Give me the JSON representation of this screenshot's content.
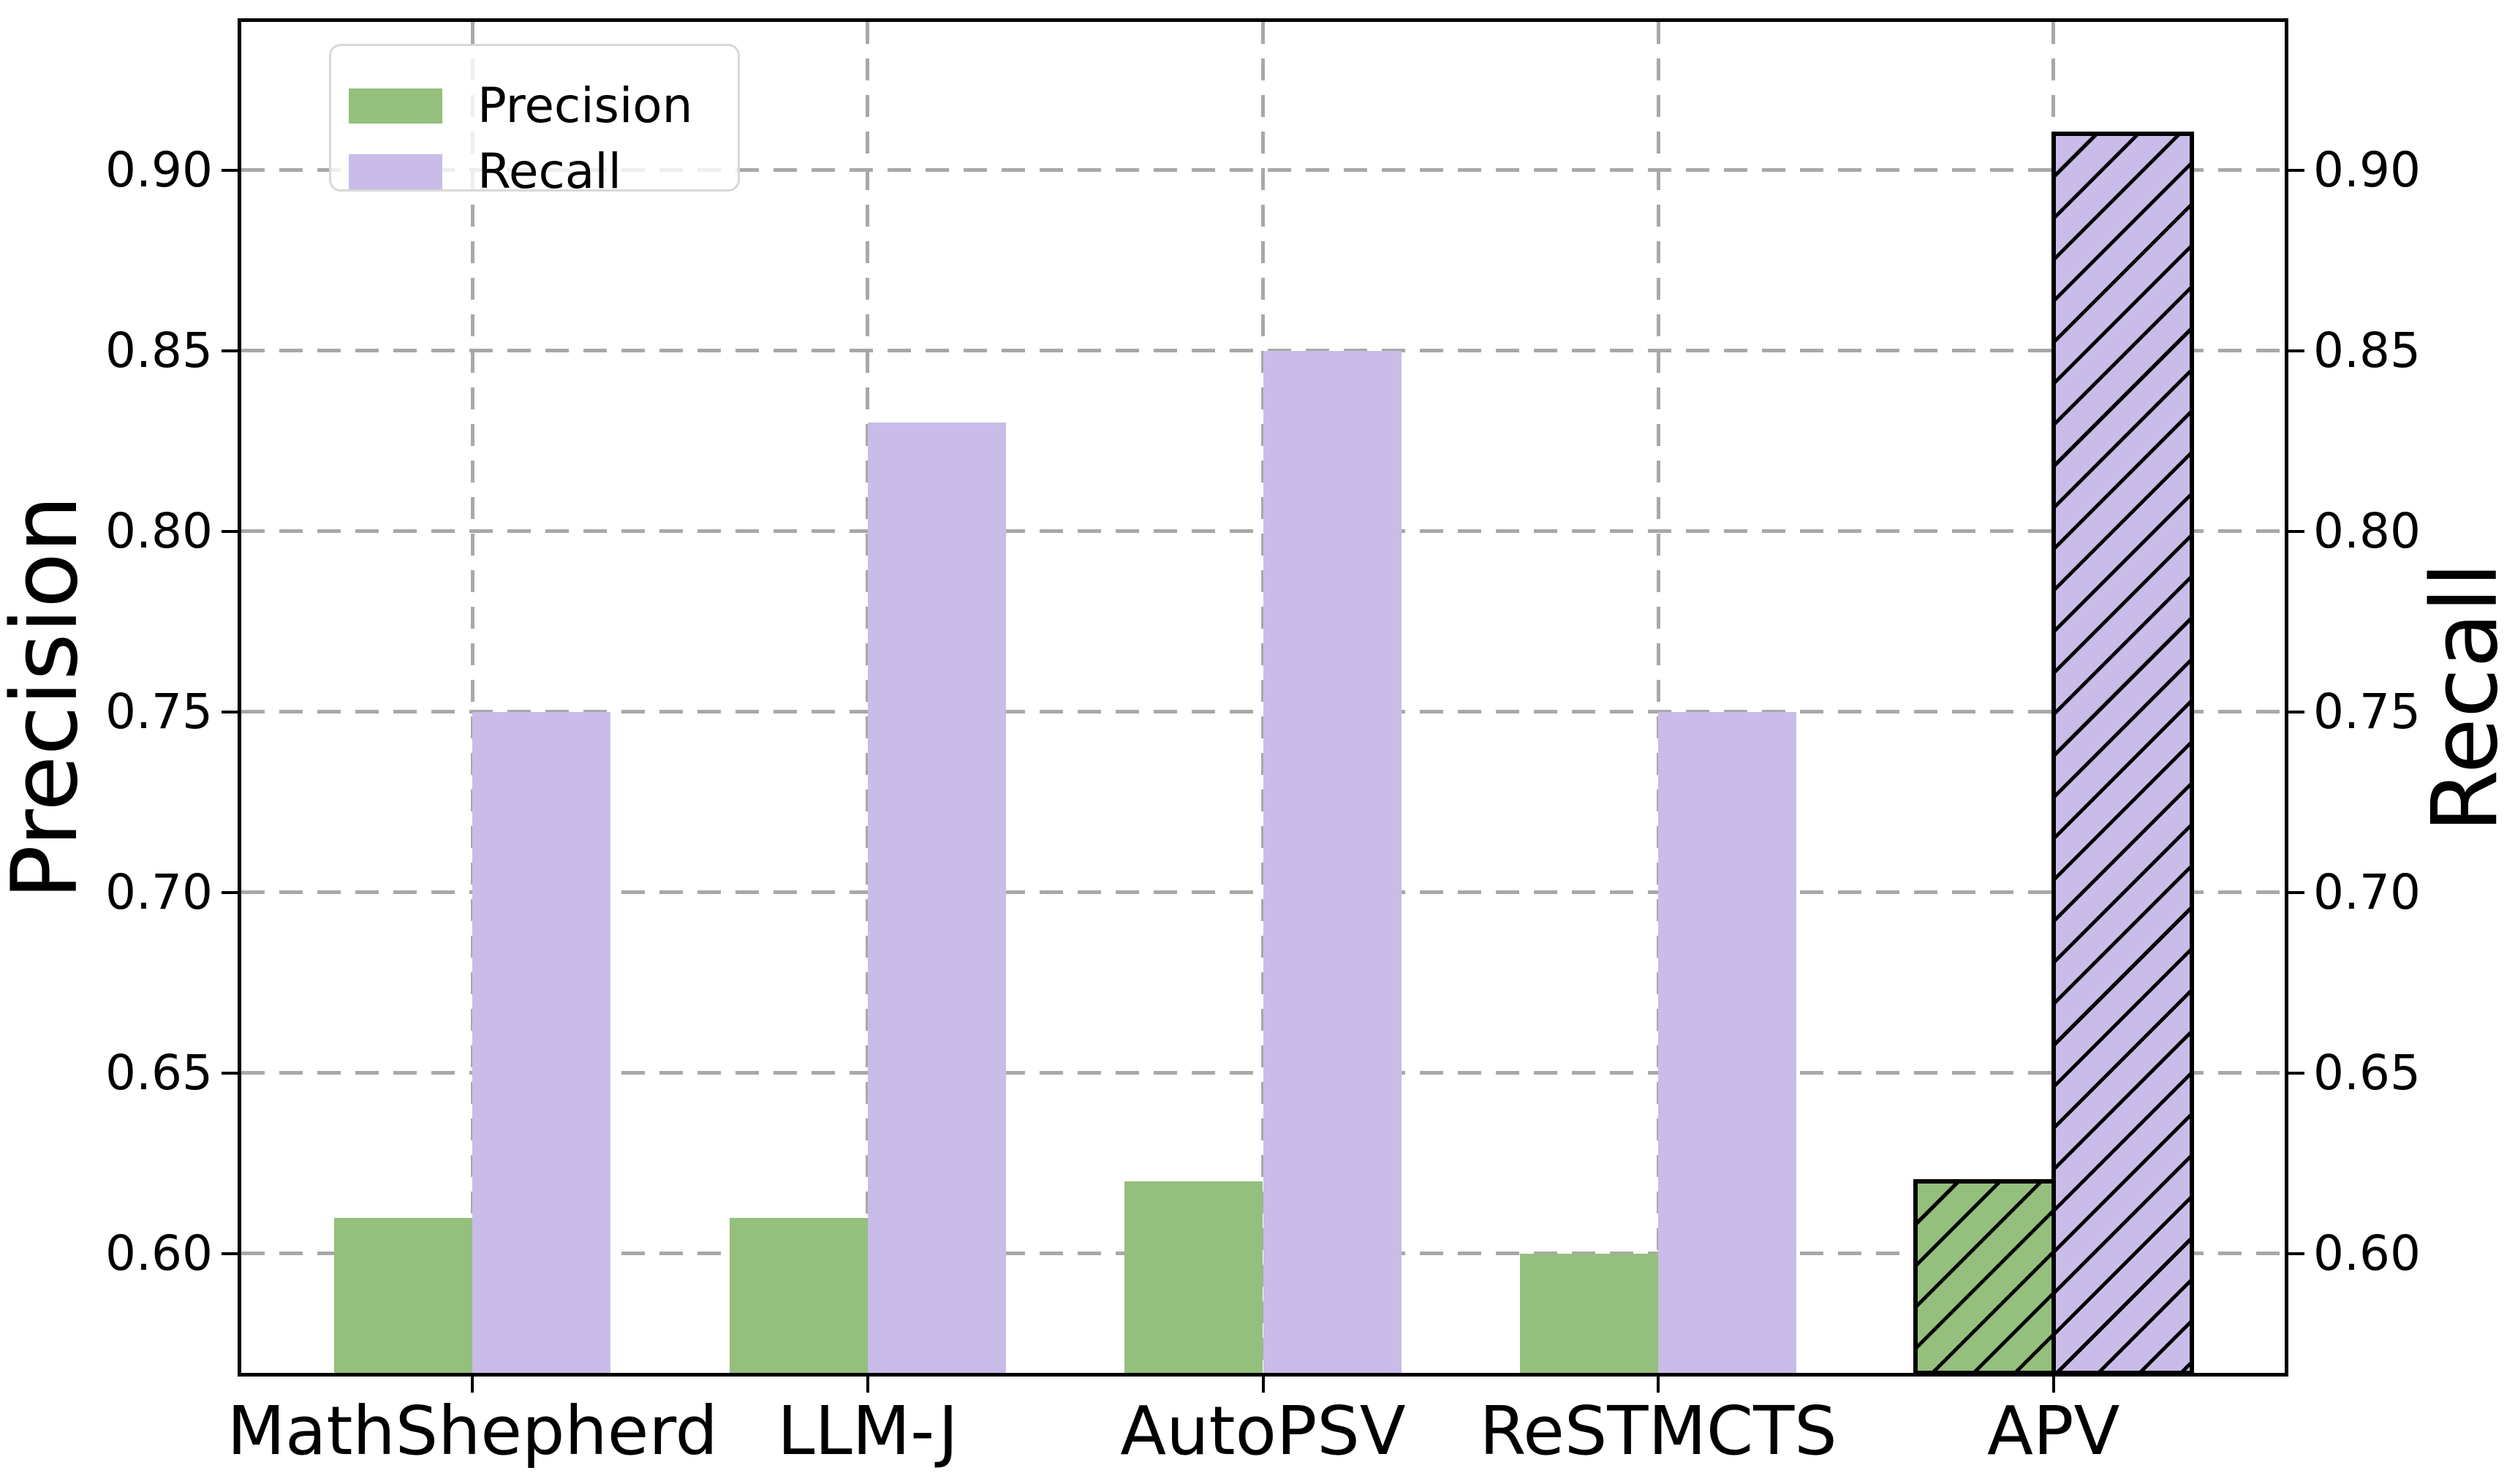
{
  "chart_data": {
    "type": "bar",
    "title": "",
    "categories": [
      "MathShepherd",
      "LLM-J",
      "AutoPSV",
      "ReSTMCTS",
      "APV"
    ],
    "series": [
      {
        "name": "Precision",
        "axis": "left",
        "color": "#94bf7c",
        "values": [
          0.61,
          0.61,
          0.62,
          0.6,
          0.62
        ]
      },
      {
        "name": "Recall",
        "axis": "right",
        "color": "#c9bce8",
        "values": [
          0.75,
          0.83,
          0.85,
          0.75,
          0.91
        ]
      }
    ],
    "highlight": {
      "category": "APV",
      "hatch": "//",
      "edge_color": "#000000"
    },
    "ylabel_left": "Precision",
    "ylabel_right": "Recall",
    "yticks": [
      0.6,
      0.65,
      0.7,
      0.75,
      0.8,
      0.85,
      0.9
    ],
    "ytick_labels": [
      "0.60",
      "0.65",
      "0.70",
      "0.75",
      "0.80",
      "0.85",
      "0.90"
    ],
    "ylim": [
      0.567,
      0.941
    ],
    "xlim_units": [
      -0.585,
      4.585
    ],
    "bar_width_fraction": 0.35,
    "grid": {
      "show": true,
      "style": "dashed",
      "color": "#a8a8a8",
      "axes": "both"
    },
    "legend": {
      "position": "upper left",
      "entries": [
        "Precision",
        "Recall"
      ]
    }
  }
}
